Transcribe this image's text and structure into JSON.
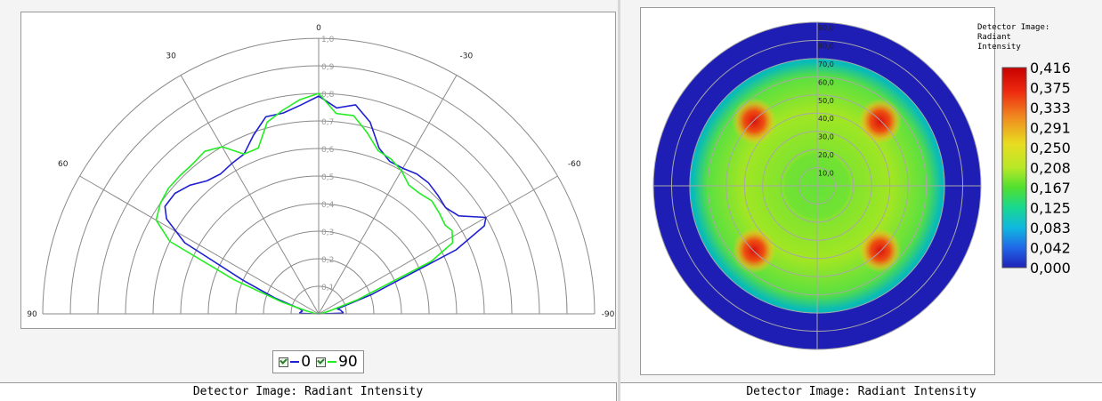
{
  "left": {
    "status_text": "Detector Image: Radiant Intensity",
    "legend": [
      {
        "label": "0",
        "color": "#2020d0"
      },
      {
        "label": "90",
        "color": "#22ee22"
      }
    ]
  },
  "right": {
    "status_text": "Detector Image: Radiant Intensity",
    "colorbar_title": "Detector Image:\nRadiant\nIntensity"
  },
  "chart_data": [
    {
      "type": "polar-line",
      "angle_labels": [
        "0",
        "30",
        "-30",
        "60",
        "-60",
        "90",
        "-90"
      ],
      "radial_ticks": [
        "0,1",
        "0,2",
        "0,3",
        "0,4",
        "0,5",
        "0,6",
        "0,7",
        "0,8",
        "0,9",
        "1,0"
      ],
      "rlim": [
        0,
        1.0
      ],
      "series": [
        {
          "name": "0",
          "color": "#2020d0",
          "points": [
            [
              -88,
              0.09
            ],
            [
              -80,
              0.08
            ],
            [
              -75,
              0.07
            ],
            [
              -70,
              0.2
            ],
            [
              -65,
              0.55
            ],
            [
              -62,
              0.68
            ],
            [
              -60,
              0.7
            ],
            [
              -55,
              0.62
            ],
            [
              -50,
              0.6
            ],
            [
              -45,
              0.61
            ],
            [
              -40,
              0.62
            ],
            [
              -35,
              0.62
            ],
            [
              -30,
              0.61
            ],
            [
              -25,
              0.61
            ],
            [
              -20,
              0.64
            ],
            [
              -15,
              0.72
            ],
            [
              -10,
              0.77
            ],
            [
              -5,
              0.75
            ],
            [
              0,
              0.79
            ],
            [
              5,
              0.76
            ],
            [
              10,
              0.74
            ],
            [
              15,
              0.74
            ],
            [
              20,
              0.69
            ],
            [
              25,
              0.64
            ],
            [
              30,
              0.63
            ],
            [
              35,
              0.62
            ],
            [
              40,
              0.63
            ],
            [
              45,
              0.66
            ],
            [
              50,
              0.68
            ],
            [
              55,
              0.68
            ],
            [
              58,
              0.65
            ],
            [
              62,
              0.55
            ],
            [
              66,
              0.3
            ],
            [
              70,
              0.17
            ],
            [
              75,
              0.07
            ],
            [
              80,
              0.06
            ],
            [
              88,
              0.07
            ]
          ]
        },
        {
          "name": "90",
          "color": "#22ee22",
          "points": [
            [
              -80,
              0.01
            ],
            [
              -75,
              0.04
            ],
            [
              -70,
              0.15
            ],
            [
              -65,
              0.45
            ],
            [
              -62,
              0.55
            ],
            [
              -58,
              0.57
            ],
            [
              -55,
              0.56
            ],
            [
              -50,
              0.57
            ],
            [
              -45,
              0.58
            ],
            [
              -40,
              0.57
            ],
            [
              -35,
              0.57
            ],
            [
              -30,
              0.6
            ],
            [
              -25,
              0.62
            ],
            [
              -20,
              0.63
            ],
            [
              -15,
              0.68
            ],
            [
              -10,
              0.73
            ],
            [
              -5,
              0.73
            ],
            [
              0,
              0.8
            ],
            [
              5,
              0.78
            ],
            [
              10,
              0.75
            ],
            [
              15,
              0.72
            ],
            [
              20,
              0.64
            ],
            [
              25,
              0.64
            ],
            [
              30,
              0.7
            ],
            [
              35,
              0.72
            ],
            [
              40,
              0.71
            ],
            [
              45,
              0.71
            ],
            [
              50,
              0.71
            ],
            [
              55,
              0.7
            ],
            [
              60,
              0.68
            ],
            [
              64,
              0.6
            ],
            [
              68,
              0.33
            ],
            [
              72,
              0.14
            ],
            [
              76,
              0.05
            ],
            [
              80,
              0.02
            ]
          ]
        }
      ]
    },
    {
      "type": "heatmap",
      "colorbar_title": "Detector Image: Radiant Intensity",
      "colorbar_ticks": [
        "0,416",
        "0,375",
        "0,333",
        "0,291",
        "0,250",
        "0,208",
        "0,167",
        "0,125",
        "0,083",
        "0,042",
        "0,000"
      ],
      "ring_labels": [
        "90,0",
        "80,0",
        "70,0",
        "60,0",
        "50,0",
        "40,0",
        "30,0",
        "20,0",
        "10,0"
      ],
      "regions": [
        {
          "name": "outer-ring",
          "value": 0.0
        },
        {
          "name": "transition-ring",
          "value": 0.13
        },
        {
          "name": "inner-disk",
          "value": 0.23
        },
        {
          "name": "center",
          "value": 0.2
        },
        {
          "name": "hotspot-1",
          "value": 0.4
        },
        {
          "name": "hotspot-2",
          "value": 0.39
        },
        {
          "name": "hotspot-3",
          "value": 0.39
        },
        {
          "name": "hotspot-4",
          "value": 0.38
        }
      ]
    }
  ]
}
